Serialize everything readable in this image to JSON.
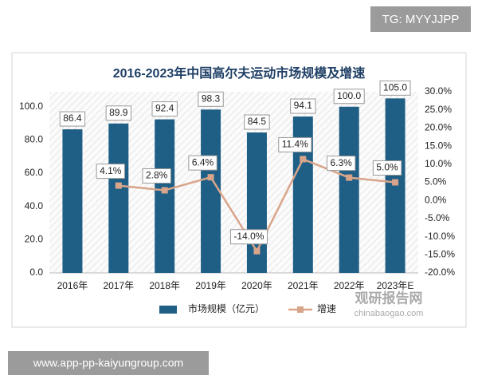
{
  "chart_data": {
    "type": "bar",
    "title": "2016-2023年中国高尔夫运动市场规模及增速",
    "categories": [
      "2016年",
      "2017年",
      "2018年",
      "2019年",
      "2020年",
      "2021年",
      "2022年",
      "2023年E"
    ],
    "series": [
      {
        "name": "市场规模（亿元）",
        "type": "bar",
        "color": "#1f5f86",
        "values": [
          86.4,
          89.9,
          92.4,
          98.3,
          84.5,
          94.1,
          100,
          105
        ],
        "value_labels": [
          "86.4",
          "89.9",
          "92.4",
          "98.3",
          "84.5",
          "94.1",
          "100.0",
          "105.0"
        ]
      },
      {
        "name": "增速",
        "type": "line",
        "axis": "y2",
        "color": "#d9a58a",
        "values": [
          null,
          4.1,
          2.8,
          6.4,
          -14,
          11.4,
          6.3,
          5
        ],
        "value_labels": [
          null,
          "4.1%",
          "2.8%",
          "6.4%",
          "-14.0%",
          "11.4%",
          "6.3%",
          "5.0%"
        ]
      }
    ],
    "ylim": [
      0,
      109
    ],
    "yticks": [
      {
        "value": 0,
        "label": "0.0"
      },
      {
        "value": 20,
        "label": "20.0"
      },
      {
        "value": 40,
        "label": "40.0"
      },
      {
        "value": 60,
        "label": "60.0"
      },
      {
        "value": 80,
        "label": "80.0"
      },
      {
        "value": 100,
        "label": "100.0"
      }
    ],
    "y2lim": [
      -20,
      30
    ],
    "y2ticks": [
      {
        "value": -20,
        "label": "-20.0%"
      },
      {
        "value": -15,
        "label": "-15.0%"
      },
      {
        "value": -10,
        "label": "-10.0%"
      },
      {
        "value": -5,
        "label": "-5.0%"
      },
      {
        "value": 0,
        "label": "0.0%"
      },
      {
        "value": 5,
        "label": "5.0%"
      },
      {
        "value": 10,
        "label": "10.0%"
      },
      {
        "value": 15,
        "label": "15.0%"
      },
      {
        "value": 20,
        "label": "20.0%"
      },
      {
        "value": 25,
        "label": "25.0%"
      },
      {
        "value": 30,
        "label": "30.0%"
      }
    ],
    "legend": "bottom"
  },
  "watermarks": {
    "top": "TG: MYYJJPP",
    "bottom": "www.app-pp-kaiyungroup.com",
    "logo": "观研报告网",
    "logo_url": "chinabaogao.com"
  }
}
